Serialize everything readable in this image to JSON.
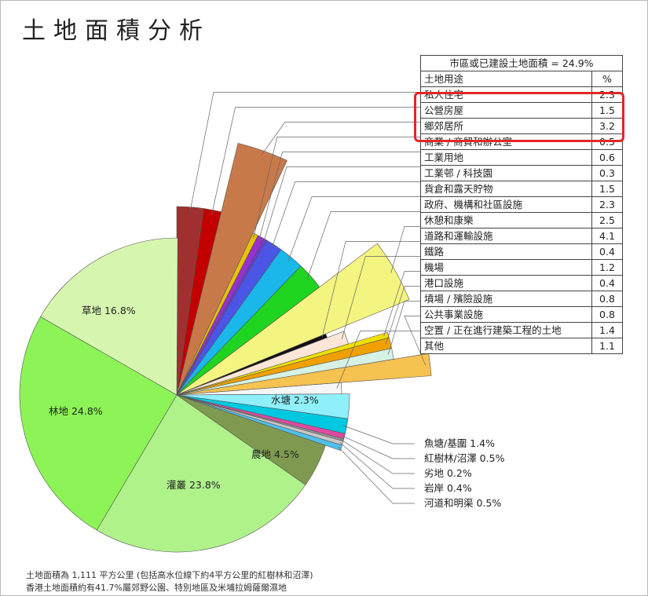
{
  "title": "土地面積分析",
  "chart_data": {
    "type": "pie",
    "title": "土地面積分析",
    "table": {
      "caption": "市區或已建設土地面積 = 24.9%",
      "header": [
        "土地用途",
        "%"
      ],
      "highlighted": [
        "私人住宅",
        "公營房屋",
        "鄉郊居所"
      ],
      "rows": [
        {
          "label": "私人住宅",
          "value": 2.3,
          "color": "#a0302f"
        },
        {
          "label": "公營房屋",
          "value": 1.5,
          "color": "#c20000"
        },
        {
          "label": "鄉郊居所",
          "value": 3.2,
          "color": "#c8794a"
        },
        {
          "label": "商業 / 商貿和辦公室",
          "value": 0.5,
          "color": "#e8c300"
        },
        {
          "label": "工業用地",
          "value": 0.6,
          "color": "#9a2fd0"
        },
        {
          "label": "工業邨 / 科技園",
          "value": 0.3,
          "color": "#6a3ad0"
        },
        {
          "label": "貨倉和露天貯物",
          "value": 1.5,
          "color": "#4b55e6"
        },
        {
          "label": "政府、機構和社區設施",
          "value": 2.3,
          "color": "#19b7ea"
        },
        {
          "label": "休憩和康樂",
          "value": 2.5,
          "color": "#1fd41f"
        },
        {
          "label": "道路和運輸設施",
          "value": 4.1,
          "color": "#f4f480"
        },
        {
          "label": "鐵路",
          "value": 0.4,
          "color": "#111111"
        },
        {
          "label": "機場",
          "value": 1.2,
          "color": "#fbe6d8"
        },
        {
          "label": "港口設施",
          "value": 0.4,
          "color": "#f0e000"
        },
        {
          "label": "墳場 / 殯險設施",
          "value": 0.8,
          "color": "#f0a000"
        },
        {
          "label": "公共事業設施",
          "value": 0.8,
          "color": "#d6f2e4"
        },
        {
          "label": "空置 / 正在進行建築工程的土地",
          "value": 1.4,
          "color": "#f6c250"
        },
        {
          "label": "其他",
          "value": 1.1,
          "color": "#f6f6f6"
        }
      ]
    },
    "outer": [
      {
        "label": "水塘",
        "value": 2.3,
        "text": "水塘  2.3%",
        "color": "#8ff0fc"
      },
      {
        "label": "魚塘/基圍",
        "value": 1.4,
        "text": "魚塘/基圍  1.4%",
        "color": "#00c8e0"
      },
      {
        "label": "紅樹林/沼澤",
        "value": 0.5,
        "text": "紅樹林/沼澤  0.5%",
        "color": "#e04aa0"
      },
      {
        "label": "劣地",
        "value": 0.2,
        "text": "劣地  0.2%",
        "color": "#9a9a9a"
      },
      {
        "label": "岩岸",
        "value": 0.4,
        "text": "岩岸  0.4%",
        "color": "#c8c8c8"
      },
      {
        "label": "河道和明渠",
        "value": 0.5,
        "text": "河道和明渠  0.5%",
        "color": "#4fc0ec"
      },
      {
        "label": "農地",
        "value": 4.5,
        "text": "農地  4.5%",
        "color": "#7f9a50"
      },
      {
        "label": "灌叢",
        "value": 23.8,
        "text": "灌叢  23.8%",
        "color": "#aff28a"
      },
      {
        "label": "林地",
        "value": 24.8,
        "text": "林地  24.8%",
        "color": "#8cf456"
      },
      {
        "label": "草地",
        "value": 16.8,
        "text": "草地  16.8%",
        "color": "#d6f6b0"
      }
    ]
  },
  "footnotes": [
    "土地面積為 1,111 平方公里 (包括高水位線下約4平方公里的紅樹林和沼澤)",
    "香港土地面積約有41.7%屬郊野公園、特別地區及米埔拉姆薩爾濕地"
  ]
}
